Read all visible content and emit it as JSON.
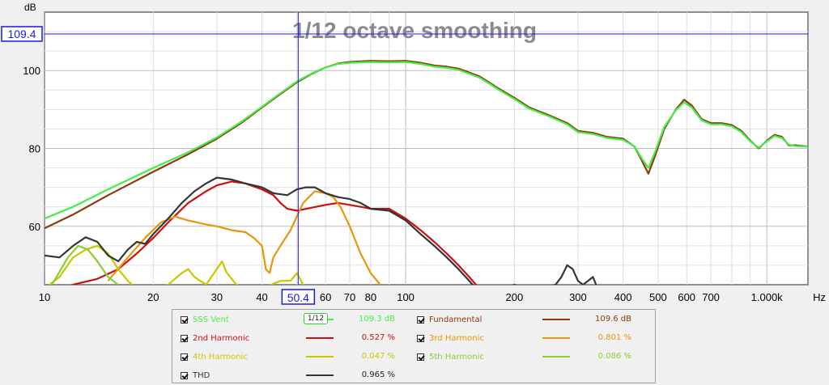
{
  "chart_data": {
    "type": "line",
    "title": "1/12 octave smoothing",
    "ylabel": "dB",
    "xlabel": "Hz",
    "x_scale": "log",
    "xlim": [
      10,
      1300
    ],
    "ylim": [
      45,
      115
    ],
    "x_ticks": [
      {
        "v": 10,
        "label": "10"
      },
      {
        "v": 20,
        "label": "20"
      },
      {
        "v": 30,
        "label": "30"
      },
      {
        "v": 40,
        "label": "40"
      },
      {
        "v": 60,
        "label": "60"
      },
      {
        "v": 70,
        "label": "70"
      },
      {
        "v": 80,
        "label": "80"
      },
      {
        "v": 100,
        "label": "100"
      },
      {
        "v": 200,
        "label": "200"
      },
      {
        "v": 300,
        "label": "300"
      },
      {
        "v": 400,
        "label": "400"
      },
      {
        "v": 500,
        "label": "500"
      },
      {
        "v": 600,
        "label": "600"
      },
      {
        "v": 700,
        "label": "700"
      },
      {
        "v": 1000,
        "label": "1.000k"
      }
    ],
    "y_ticks": [
      {
        "v": 60,
        "label": "60"
      },
      {
        "v": 80,
        "label": "80"
      },
      {
        "v": 100,
        "label": "100"
      }
    ],
    "cursor": {
      "x": 50.4,
      "y": 109.4,
      "x_label": "50.4",
      "y_label": "109.4"
    },
    "series": [
      {
        "name": "Fundamental",
        "color": "#8b3a0f",
        "points": [
          [
            10,
            59.5
          ],
          [
            12,
            63
          ],
          [
            15,
            68
          ],
          [
            20,
            74
          ],
          [
            25,
            78.5
          ],
          [
            30,
            82.5
          ],
          [
            35,
            86.5
          ],
          [
            40,
            90.5
          ],
          [
            45,
            94
          ],
          [
            50,
            97
          ],
          [
            55,
            99.2
          ],
          [
            60,
            100.8
          ],
          [
            65,
            101.8
          ],
          [
            70,
            102.2
          ],
          [
            80,
            102.5
          ],
          [
            90,
            102.4
          ],
          [
            100,
            102.5
          ],
          [
            110,
            102
          ],
          [
            120,
            101.3
          ],
          [
            130,
            101
          ],
          [
            140,
            100.5
          ],
          [
            150,
            99.5
          ],
          [
            160,
            98.5
          ],
          [
            170,
            97
          ],
          [
            180,
            95.5
          ],
          [
            200,
            93
          ],
          [
            220,
            90.5
          ],
          [
            250,
            88.5
          ],
          [
            280,
            86.5
          ],
          [
            300,
            84.5
          ],
          [
            330,
            84
          ],
          [
            360,
            83
          ],
          [
            400,
            82.5
          ],
          [
            430,
            80.5
          ],
          [
            450,
            77
          ],
          [
            470,
            73.5
          ],
          [
            490,
            78
          ],
          [
            520,
            85
          ],
          [
            560,
            90
          ],
          [
            590,
            92.5
          ],
          [
            620,
            91
          ],
          [
            660,
            87.5
          ],
          [
            700,
            86.5
          ],
          [
            750,
            86.5
          ],
          [
            800,
            86
          ],
          [
            850,
            84.5
          ],
          [
            900,
            82
          ],
          [
            950,
            80
          ],
          [
            1000,
            82
          ],
          [
            1050,
            83.5
          ],
          [
            1100,
            83
          ],
          [
            1150,
            80.8
          ],
          [
            1200,
            80.8
          ],
          [
            1300,
            80.5
          ]
        ]
      },
      {
        "name": "SSS Vent",
        "color": "#44ee44",
        "points": [
          [
            10,
            62
          ],
          [
            12,
            65
          ],
          [
            15,
            69.5
          ],
          [
            20,
            75
          ],
          [
            25,
            79
          ],
          [
            30,
            82.8
          ],
          [
            35,
            86.8
          ],
          [
            40,
            90.7
          ],
          [
            45,
            94.2
          ],
          [
            50,
            97.2
          ],
          [
            55,
            99.3
          ],
          [
            60,
            100.8
          ],
          [
            65,
            101.7
          ],
          [
            70,
            102
          ],
          [
            80,
            102.2
          ],
          [
            90,
            102.1
          ],
          [
            100,
            102.2
          ],
          [
            110,
            101.7
          ],
          [
            120,
            101
          ],
          [
            130,
            100.7
          ],
          [
            140,
            100.2
          ],
          [
            150,
            99.2
          ],
          [
            160,
            98.2
          ],
          [
            170,
            96.7
          ],
          [
            180,
            95.2
          ],
          [
            200,
            92.7
          ],
          [
            220,
            90.2
          ],
          [
            250,
            88.2
          ],
          [
            280,
            86.2
          ],
          [
            300,
            84.2
          ],
          [
            330,
            83.7
          ],
          [
            360,
            82.7
          ],
          [
            400,
            82.2
          ],
          [
            430,
            80.5
          ],
          [
            450,
            77.5
          ],
          [
            470,
            75
          ],
          [
            490,
            79
          ],
          [
            520,
            85.5
          ],
          [
            560,
            89.8
          ],
          [
            590,
            91.8
          ],
          [
            620,
            90.5
          ],
          [
            660,
            87.2
          ],
          [
            700,
            86.2
          ],
          [
            750,
            86.2
          ],
          [
            800,
            85.7
          ],
          [
            850,
            84.2
          ],
          [
            900,
            81.8
          ],
          [
            950,
            80.2
          ],
          [
            1000,
            81.8
          ],
          [
            1050,
            83.2
          ],
          [
            1100,
            82.7
          ],
          [
            1150,
            81
          ],
          [
            1200,
            80.6
          ],
          [
            1300,
            80.5
          ]
        ]
      },
      {
        "name": "2nd Harmonic",
        "color": "#cc1010",
        "points": [
          [
            10,
            42
          ],
          [
            12,
            45
          ],
          [
            14,
            46.5
          ],
          [
            16,
            49
          ],
          [
            18,
            53
          ],
          [
            20,
            57
          ],
          [
            22,
            61
          ],
          [
            25,
            66
          ],
          [
            28,
            69
          ],
          [
            30,
            70.5
          ],
          [
            33,
            71.5
          ],
          [
            36,
            71
          ],
          [
            40,
            69.5
          ],
          [
            43,
            68
          ],
          [
            45,
            66
          ],
          [
            47,
            64.5
          ],
          [
            50,
            64
          ],
          [
            55,
            64.8
          ],
          [
            60,
            65.5
          ],
          [
            65,
            66
          ],
          [
            70,
            65.5
          ],
          [
            75,
            65
          ],
          [
            80,
            64.5
          ],
          [
            90,
            64.5
          ],
          [
            100,
            62
          ],
          [
            110,
            59
          ],
          [
            120,
            56
          ],
          [
            130,
            53
          ],
          [
            140,
            50
          ],
          [
            150,
            47
          ],
          [
            160,
            44
          ],
          [
            170,
            42
          ]
        ]
      },
      {
        "name": "3rd Harmonic",
        "color": "#e8960c",
        "points": [
          [
            15,
            46
          ],
          [
            17,
            52
          ],
          [
            19,
            57
          ],
          [
            21,
            61
          ],
          [
            23,
            62.5
          ],
          [
            25,
            61.5
          ],
          [
            28,
            60.5
          ],
          [
            30,
            60
          ],
          [
            33,
            59
          ],
          [
            36,
            58.5
          ],
          [
            38,
            57
          ],
          [
            40,
            55
          ],
          [
            41,
            49
          ],
          [
            42,
            48
          ],
          [
            43,
            52
          ],
          [
            45,
            55
          ],
          [
            48,
            59
          ],
          [
            52,
            66
          ],
          [
            56,
            69
          ],
          [
            60,
            68.5
          ],
          [
            63,
            67.5
          ],
          [
            66,
            65
          ],
          [
            70,
            60
          ],
          [
            75,
            53
          ],
          [
            80,
            48
          ],
          [
            85,
            45
          ],
          [
            90,
            44
          ]
        ]
      },
      {
        "name": "4th Harmonic",
        "color": "#c8c800",
        "points": [
          [
            10,
            44
          ],
          [
            11,
            47
          ],
          [
            12,
            52
          ],
          [
            13,
            54
          ],
          [
            14,
            55
          ],
          [
            15,
            53
          ],
          [
            16,
            49
          ],
          [
            17,
            46
          ],
          [
            18,
            44
          ],
          [
            20,
            44
          ],
          [
            22,
            45
          ],
          [
            24,
            48
          ],
          [
            25,
            49
          ],
          [
            26,
            47
          ],
          [
            28,
            45
          ],
          [
            30,
            49
          ],
          [
            31,
            51
          ],
          [
            32,
            48
          ],
          [
            34,
            45
          ],
          [
            36,
            44
          ],
          [
            40,
            44
          ],
          [
            45,
            46
          ],
          [
            48,
            46
          ],
          [
            50,
            48
          ],
          [
            52,
            45
          ],
          [
            55,
            44
          ]
        ]
      },
      {
        "name": "5th Harmonic",
        "color": "#8ccc30",
        "points": [
          [
            10,
            42
          ],
          [
            10.8,
            47
          ],
          [
            11.6,
            52
          ],
          [
            12.4,
            55
          ],
          [
            13.2,
            54
          ],
          [
            14,
            51
          ],
          [
            15,
            47
          ],
          [
            16.5,
            44
          ],
          [
            18,
            42
          ]
        ]
      },
      {
        "name": "THD",
        "color": "#353535",
        "points": [
          [
            10,
            52.5
          ],
          [
            11,
            52
          ],
          [
            12,
            55
          ],
          [
            13,
            57.2
          ],
          [
            14,
            56
          ],
          [
            15,
            52.5
          ],
          [
            16,
            51
          ],
          [
            17,
            54
          ],
          [
            18,
            56
          ],
          [
            19,
            55.5
          ],
          [
            20,
            58
          ],
          [
            22,
            62
          ],
          [
            24,
            66
          ],
          [
            26,
            69
          ],
          [
            28,
            71
          ],
          [
            30,
            72.5
          ],
          [
            33,
            72
          ],
          [
            36,
            71
          ],
          [
            40,
            70
          ],
          [
            43,
            68.5
          ],
          [
            47,
            68
          ],
          [
            50,
            69.5
          ],
          [
            53,
            70
          ],
          [
            56,
            70
          ],
          [
            60,
            68.5
          ],
          [
            65,
            67.5
          ],
          [
            70,
            67
          ],
          [
            75,
            66
          ],
          [
            80,
            64.5
          ],
          [
            90,
            64
          ],
          [
            100,
            61.5
          ],
          [
            110,
            58
          ],
          [
            120,
            55
          ],
          [
            130,
            52
          ],
          [
            140,
            49
          ],
          [
            150,
            46
          ],
          [
            160,
            43
          ],
          [
            170,
            41
          ],
          [
            180,
            42
          ],
          [
            190,
            44
          ],
          [
            200,
            45
          ],
          [
            210,
            44
          ],
          [
            220,
            43.5
          ],
          [
            240,
            44
          ],
          [
            260,
            45
          ],
          [
            270,
            47
          ],
          [
            280,
            50
          ],
          [
            290,
            49
          ],
          [
            300,
            46
          ],
          [
            310,
            45
          ],
          [
            320,
            46
          ],
          [
            330,
            47
          ],
          [
            340,
            44
          ]
        ]
      }
    ]
  },
  "legend": {
    "rows": [
      {
        "name": "SSS Vent",
        "value": "109.3 dB",
        "color": "#44ee44"
      },
      {
        "name": "Fundamental",
        "value": "109.6 dB",
        "color": "#8b3a0f"
      },
      {
        "name": "2nd Harmonic",
        "value": "0.527 %",
        "color": "#cc1010"
      },
      {
        "name": "3rd Harmonic",
        "value": "0.801 %",
        "color": "#e8960c"
      },
      {
        "name": "4th Harmonic",
        "value": "0.047 %",
        "color": "#c8c800"
      },
      {
        "name": "5th Harmonic",
        "value": "0.086 %",
        "color": "#8ccc30"
      },
      {
        "name": "THD",
        "value": "0.965 %",
        "color": "#353535"
      }
    ],
    "smoothing_badge": "1/12"
  }
}
